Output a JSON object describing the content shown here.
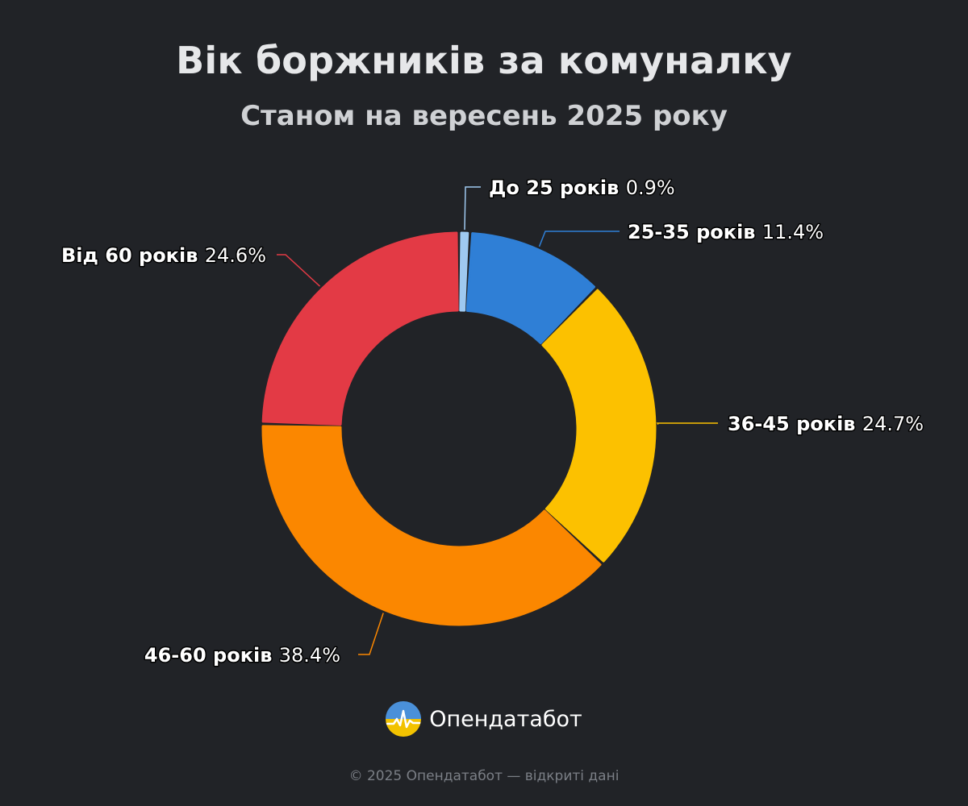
{
  "header": {
    "title": "Вік боржників за комуналку",
    "subtitle": "Станом на вересень 2025 року"
  },
  "chart_data": {
    "type": "pie",
    "variant": "donut",
    "title": "Вік боржників за комуналку",
    "subtitle": "Станом на вересень 2025 року",
    "unit": "%",
    "slices": [
      {
        "name": "До 25 років",
        "value": 0.9,
        "value_label": "0.9%",
        "color": "#9fc9f0"
      },
      {
        "name": "25-35 років",
        "value": 11.4,
        "value_label": "11.4%",
        "color": "#2f7fd6"
      },
      {
        "name": "36-45 років",
        "value": 24.7,
        "value_label": "24.7%",
        "color": "#fcc100"
      },
      {
        "name": "46-60 років",
        "value": 38.4,
        "value_label": "38.4%",
        "color": "#fb8700"
      },
      {
        "name": "Від 60 років",
        "value": 24.6,
        "value_label": "24.6%",
        "color": "#e33a45"
      }
    ],
    "legend": "none"
  },
  "brand": {
    "name": "Опендатабот",
    "logo_icon": "opendatabot-logo-icon"
  },
  "footer": {
    "text": "© 2025 Опендатабот — відкриті дані"
  }
}
